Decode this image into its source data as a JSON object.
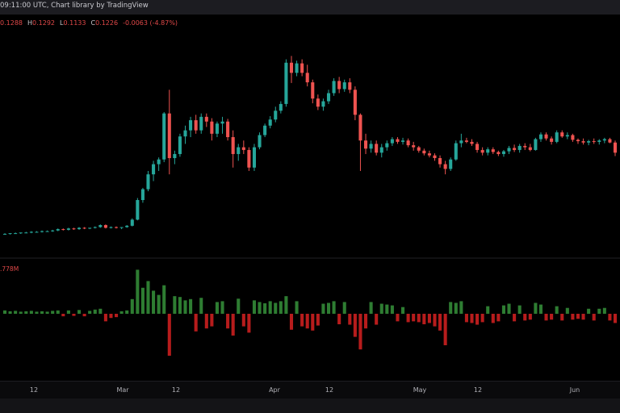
{
  "header": {
    "title": "09:11:00 UTC, Chart library by TradingView"
  },
  "legend": {
    "open": "0.1288",
    "high_label": "H",
    "high": "0.1292",
    "low_label": "L",
    "low": "0.1133",
    "close_label": "C",
    "close": "0.1226",
    "change": "-0.0063 (-4.87%)"
  },
  "volume_panel": {
    "label": ".778M"
  },
  "colors": {
    "up": "#26a69a",
    "down": "#ef5350",
    "vol_up": "#2e7d32",
    "vol_down": "#b71c1c",
    "background": "#000000"
  },
  "chart_data": {
    "type": "candlestick",
    "x_axis_ticks": [
      "12",
      "Mar",
      "12",
      "Apr",
      "12",
      "May",
      "12",
      "Jun"
    ],
    "ylim": [
      0.05,
      0.36
    ],
    "candles": [
      [
        0.062,
        0.063,
        0.061,
        0.062
      ],
      [
        0.062,
        0.063,
        0.061,
        0.063
      ],
      [
        0.063,
        0.064,
        0.062,
        0.063
      ],
      [
        0.063,
        0.064,
        0.062,
        0.064
      ],
      [
        0.064,
        0.065,
        0.063,
        0.064
      ],
      [
        0.064,
        0.066,
        0.063,
        0.065
      ],
      [
        0.065,
        0.066,
        0.064,
        0.065
      ],
      [
        0.065,
        0.067,
        0.064,
        0.066
      ],
      [
        0.066,
        0.067,
        0.065,
        0.066
      ],
      [
        0.066,
        0.068,
        0.065,
        0.067
      ],
      [
        0.067,
        0.07,
        0.066,
        0.069
      ],
      [
        0.069,
        0.07,
        0.067,
        0.068
      ],
      [
        0.068,
        0.071,
        0.067,
        0.07
      ],
      [
        0.07,
        0.071,
        0.068,
        0.069
      ],
      [
        0.069,
        0.072,
        0.068,
        0.071
      ],
      [
        0.071,
        0.072,
        0.069,
        0.07
      ],
      [
        0.07,
        0.071,
        0.069,
        0.071
      ],
      [
        0.071,
        0.073,
        0.07,
        0.072
      ],
      [
        0.072,
        0.076,
        0.071,
        0.075
      ],
      [
        0.075,
        0.076,
        0.07,
        0.071
      ],
      [
        0.071,
        0.073,
        0.07,
        0.072
      ],
      [
        0.072,
        0.073,
        0.07,
        0.071
      ],
      [
        0.071,
        0.072,
        0.069,
        0.072
      ],
      [
        0.072,
        0.075,
        0.071,
        0.074
      ],
      [
        0.074,
        0.085,
        0.073,
        0.083
      ],
      [
        0.083,
        0.115,
        0.082,
        0.112
      ],
      [
        0.112,
        0.13,
        0.108,
        0.128
      ],
      [
        0.128,
        0.155,
        0.125,
        0.15
      ],
      [
        0.15,
        0.17,
        0.14,
        0.165
      ],
      [
        0.165,
        0.175,
        0.155,
        0.172
      ],
      [
        0.172,
        0.242,
        0.168,
        0.24
      ],
      [
        0.24,
        0.275,
        0.15,
        0.174
      ],
      [
        0.174,
        0.185,
        0.165,
        0.18
      ],
      [
        0.18,
        0.21,
        0.176,
        0.206
      ],
      [
        0.206,
        0.222,
        0.195,
        0.215
      ],
      [
        0.215,
        0.235,
        0.205,
        0.23
      ],
      [
        0.23,
        0.238,
        0.21,
        0.215
      ],
      [
        0.215,
        0.24,
        0.21,
        0.235
      ],
      [
        0.235,
        0.24,
        0.22,
        0.228
      ],
      [
        0.228,
        0.233,
        0.2,
        0.21
      ],
      [
        0.21,
        0.228,
        0.205,
        0.225
      ],
      [
        0.225,
        0.235,
        0.21,
        0.228
      ],
      [
        0.228,
        0.232,
        0.2,
        0.205
      ],
      [
        0.205,
        0.215,
        0.16,
        0.18
      ],
      [
        0.18,
        0.195,
        0.17,
        0.19
      ],
      [
        0.19,
        0.2,
        0.18,
        0.186
      ],
      [
        0.186,
        0.19,
        0.155,
        0.16
      ],
      [
        0.16,
        0.195,
        0.155,
        0.19
      ],
      [
        0.19,
        0.212,
        0.187,
        0.208
      ],
      [
        0.208,
        0.225,
        0.205,
        0.222
      ],
      [
        0.222,
        0.236,
        0.218,
        0.231
      ],
      [
        0.231,
        0.25,
        0.227,
        0.244
      ],
      [
        0.244,
        0.258,
        0.24,
        0.254
      ],
      [
        0.254,
        0.32,
        0.25,
        0.315
      ],
      [
        0.315,
        0.325,
        0.285,
        0.3
      ],
      [
        0.3,
        0.318,
        0.295,
        0.314
      ],
      [
        0.314,
        0.32,
        0.295,
        0.3
      ],
      [
        0.3,
        0.312,
        0.28,
        0.286
      ],
      [
        0.286,
        0.29,
        0.255,
        0.262
      ],
      [
        0.262,
        0.268,
        0.245,
        0.25
      ],
      [
        0.25,
        0.262,
        0.244,
        0.258
      ],
      [
        0.258,
        0.275,
        0.254,
        0.27
      ],
      [
        0.27,
        0.292,
        0.266,
        0.288
      ],
      [
        0.288,
        0.294,
        0.27,
        0.276
      ],
      [
        0.276,
        0.29,
        0.272,
        0.286
      ],
      [
        0.286,
        0.292,
        0.27,
        0.275
      ],
      [
        0.275,
        0.28,
        0.23,
        0.238
      ],
      [
        0.238,
        0.24,
        0.155,
        0.2
      ],
      [
        0.2,
        0.21,
        0.18,
        0.188
      ],
      [
        0.188,
        0.2,
        0.182,
        0.195
      ],
      [
        0.195,
        0.2,
        0.178,
        0.182
      ],
      [
        0.182,
        0.195,
        0.175,
        0.19
      ],
      [
        0.19,
        0.2,
        0.185,
        0.196
      ],
      [
        0.196,
        0.205,
        0.192,
        0.202
      ],
      [
        0.202,
        0.205,
        0.195,
        0.198
      ],
      [
        0.198,
        0.204,
        0.194,
        0.2
      ],
      [
        0.2,
        0.203,
        0.19,
        0.193
      ],
      [
        0.193,
        0.198,
        0.185,
        0.19
      ],
      [
        0.19,
        0.192,
        0.182,
        0.185
      ],
      [
        0.185,
        0.188,
        0.178,
        0.181
      ],
      [
        0.181,
        0.185,
        0.175,
        0.178
      ],
      [
        0.178,
        0.181,
        0.17,
        0.174
      ],
      [
        0.174,
        0.178,
        0.16,
        0.165
      ],
      [
        0.165,
        0.17,
        0.15,
        0.158
      ],
      [
        0.158,
        0.175,
        0.155,
        0.172
      ],
      [
        0.172,
        0.2,
        0.17,
        0.196
      ],
      [
        0.196,
        0.21,
        0.19,
        0.2
      ],
      [
        0.2,
        0.204,
        0.196,
        0.198
      ],
      [
        0.198,
        0.202,
        0.192,
        0.195
      ],
      [
        0.195,
        0.198,
        0.182,
        0.186
      ],
      [
        0.186,
        0.19,
        0.178,
        0.182
      ],
      [
        0.182,
        0.19,
        0.178,
        0.187
      ],
      [
        0.187,
        0.19,
        0.18,
        0.183
      ],
      [
        0.183,
        0.185,
        0.177,
        0.18
      ],
      [
        0.18,
        0.186,
        0.176,
        0.184
      ],
      [
        0.184,
        0.192,
        0.18,
        0.189
      ],
      [
        0.189,
        0.194,
        0.183,
        0.186
      ],
      [
        0.186,
        0.195,
        0.182,
        0.192
      ],
      [
        0.192,
        0.196,
        0.186,
        0.19
      ],
      [
        0.19,
        0.195,
        0.184,
        0.186
      ],
      [
        0.186,
        0.204,
        0.185,
        0.202
      ],
      [
        0.202,
        0.212,
        0.198,
        0.209
      ],
      [
        0.209,
        0.212,
        0.2,
        0.203
      ],
      [
        0.203,
        0.206,
        0.194,
        0.198
      ],
      [
        0.198,
        0.215,
        0.196,
        0.212
      ],
      [
        0.212,
        0.215,
        0.204,
        0.206
      ],
      [
        0.206,
        0.212,
        0.202,
        0.208
      ],
      [
        0.208,
        0.21,
        0.198,
        0.201
      ],
      [
        0.201,
        0.203,
        0.195,
        0.199
      ],
      [
        0.199,
        0.203,
        0.194,
        0.197
      ],
      [
        0.197,
        0.201,
        0.193,
        0.199
      ],
      [
        0.199,
        0.203,
        0.195,
        0.198
      ],
      [
        0.198,
        0.202,
        0.194,
        0.2
      ],
      [
        0.2,
        0.204,
        0.196,
        0.202
      ],
      [
        0.202,
        0.204,
        0.196,
        0.197
      ],
      [
        0.197,
        0.2,
        0.177,
        0.182
      ]
    ],
    "volume": [
      0.08,
      0.06,
      0.07,
      0.05,
      0.06,
      0.07,
      0.05,
      0.06,
      0.05,
      0.07,
      0.08,
      -0.06,
      0.08,
      -0.05,
      0.09,
      -0.06,
      0.07,
      0.1,
      0.12,
      -0.18,
      -0.1,
      -0.08,
      0.06,
      0.08,
      0.35,
      1.05,
      0.62,
      0.78,
      0.55,
      0.45,
      0.68,
      -1.0,
      0.42,
      0.4,
      0.32,
      0.35,
      -0.42,
      0.38,
      -0.35,
      -0.3,
      0.28,
      0.3,
      -0.35,
      -0.52,
      0.36,
      -0.3,
      -0.45,
      0.32,
      0.28,
      0.25,
      0.3,
      0.26,
      0.3,
      0.42,
      -0.38,
      0.3,
      -0.3,
      -0.35,
      -0.4,
      -0.28,
      0.24,
      0.26,
      0.3,
      -0.25,
      0.28,
      -0.26,
      -0.55,
      -0.85,
      -0.35,
      0.28,
      -0.26,
      0.24,
      0.22,
      0.2,
      -0.18,
      0.16,
      -0.2,
      -0.18,
      -0.2,
      -0.25,
      -0.22,
      -0.3,
      -0.4,
      -0.75,
      0.28,
      0.26,
      0.3,
      -0.2,
      -0.22,
      -0.26,
      -0.2,
      0.18,
      -0.22,
      -0.18,
      0.2,
      0.24,
      -0.18,
      0.2,
      -0.16,
      -0.14,
      0.26,
      0.22,
      -0.16,
      -0.14,
      0.18,
      -0.16,
      0.14,
      -0.14,
      -0.12,
      -0.14,
      0.12,
      -0.16,
      0.12,
      0.14,
      -0.16,
      -0.22
    ]
  }
}
